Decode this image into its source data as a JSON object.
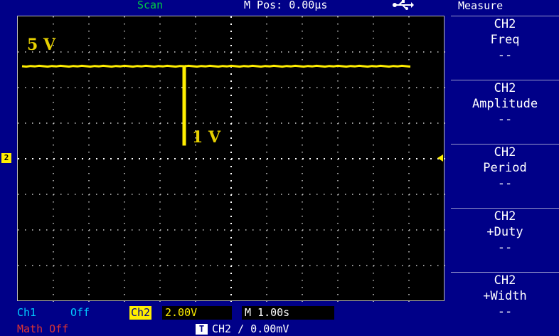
{
  "header": {
    "mode": "Scan",
    "mpos": "M Pos: 0.00µs",
    "usb_icon": "usb-icon"
  },
  "waveform": {
    "label_high": "5 V",
    "label_low": "1 V",
    "high_level_divisions": 2.6,
    "low_level_divisions": 0.4,
    "dip_time_divisions": 4.6,
    "trace_color": "#ffee00"
  },
  "menu": {
    "title": "Measure",
    "items": [
      {
        "ch": "CH2",
        "name": "Freq",
        "value": "--"
      },
      {
        "ch": "CH2",
        "name": "Amplitude",
        "value": "--"
      },
      {
        "ch": "CH2",
        "name": "Period",
        "value": "--"
      },
      {
        "ch": "CH2",
        "name": "+Duty",
        "value": "--"
      },
      {
        "ch": "CH2",
        "name": "+Width",
        "value": "--"
      }
    ]
  },
  "status": {
    "ch1_label": "Ch1",
    "ch1_state": "Off",
    "ch2_label": "Ch2",
    "ch2_scale": "2.00V",
    "timebase": "M 1.00s",
    "math": "Math Off",
    "trigger_icon": "T",
    "trigger": "CH2  ∕  0.00mV"
  },
  "ch2_marker": "2"
}
